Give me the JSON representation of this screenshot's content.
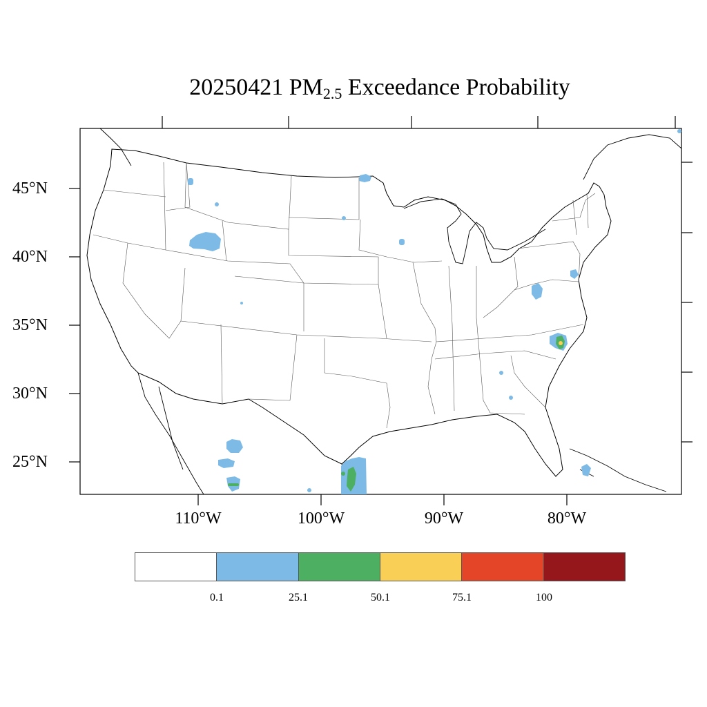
{
  "title": {
    "prefix": "20250421 PM",
    "subscript": "2.5",
    "suffix": " Exceedance Probability"
  },
  "axes": {
    "lat_labels": [
      "45°N",
      "40°N",
      "35°N",
      "30°N",
      "25°N"
    ],
    "lon_labels": [
      "110°W",
      "100°W",
      "90°W",
      "80°W"
    ]
  },
  "legend": {
    "colors": [
      "#ffffff",
      "#7dbbe6",
      "#4caf62",
      "#f9cf55",
      "#e44428",
      "#95171b"
    ],
    "labels": [
      "0.1",
      "25.1",
      "50.1",
      "75.1",
      "100"
    ]
  },
  "map_style": {
    "outline": "#000000",
    "state_lines": "#555555"
  }
}
